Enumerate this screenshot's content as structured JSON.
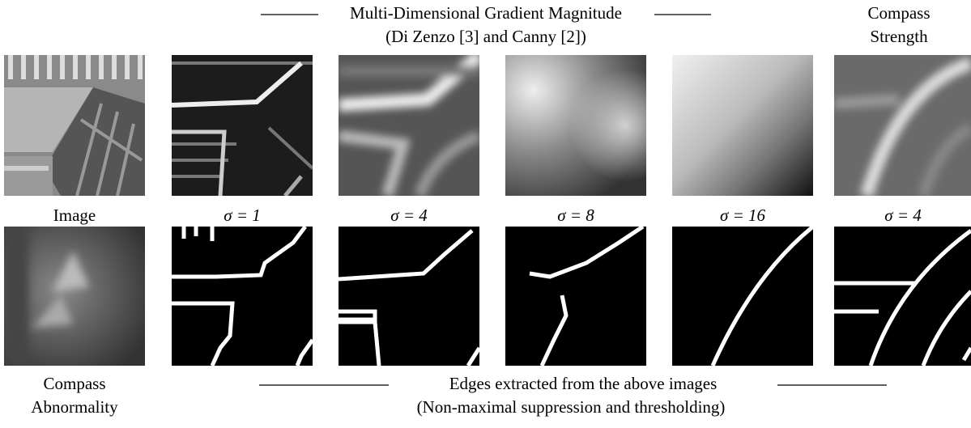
{
  "header": {
    "title": "Multi-Dimensional Gradient Magnitude",
    "subtitle": "(Di Zenzo [3] and Canny [2])"
  },
  "compass_header": [
    "Compass",
    "Strength"
  ],
  "column_labels": [
    "Image",
    "σ = 1",
    "σ = 4",
    "σ = 8",
    "σ = 16",
    "σ = 4"
  ],
  "bottom_left": [
    "Compass",
    "Abnormality"
  ],
  "footer": {
    "title": "Edges extracted from the above images",
    "subtitle": "(Non-maximal suppression and thresholding)"
  }
}
